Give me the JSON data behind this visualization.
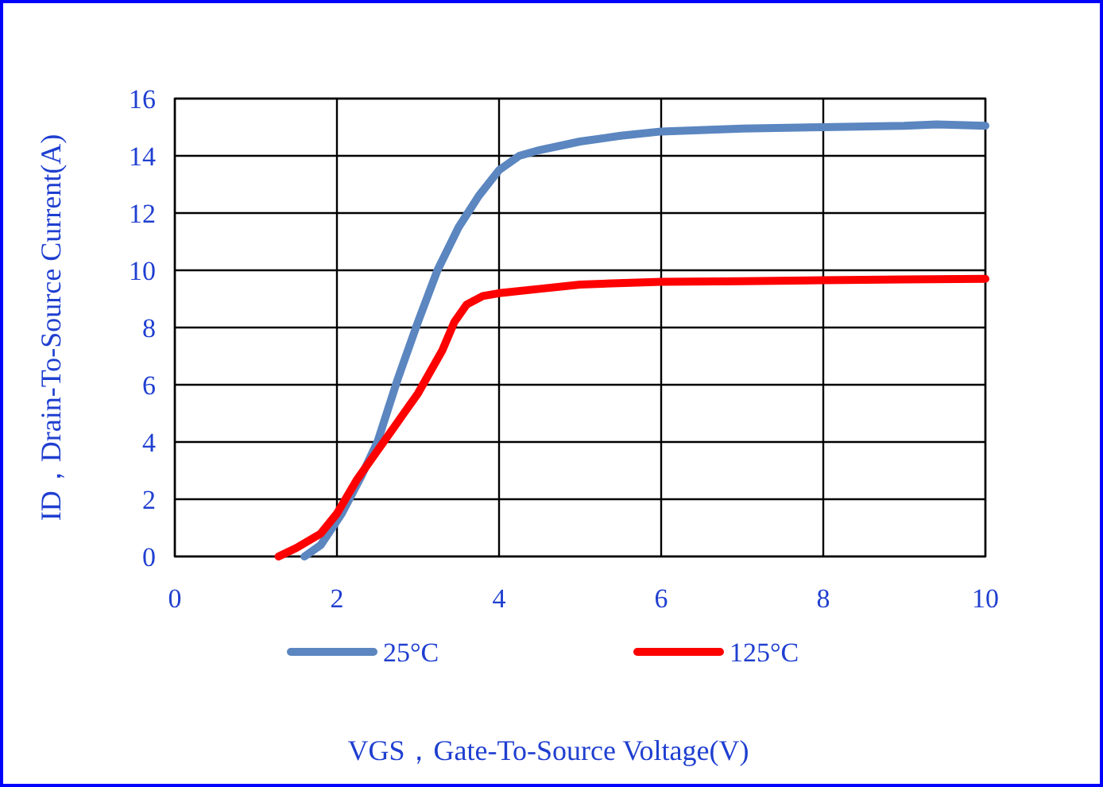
{
  "chart_data": {
    "type": "line",
    "xlabel": "VGS，Gate-To-Source Voltage(V)",
    "ylabel": "ID，Drain-To-Source Current(A)",
    "xlim": [
      0,
      10
    ],
    "xticks": [
      0,
      2,
      4,
      6,
      8,
      10
    ],
    "ylim": [
      0,
      16
    ],
    "yticks": [
      0,
      2,
      4,
      6,
      8,
      10,
      12,
      14,
      16
    ],
    "grid": true,
    "legend": "bottom",
    "line_style": "solid",
    "series": [
      {
        "name": "25°C",
        "color": "#5b86c0",
        "x": [
          1.6,
          1.8,
          2.06,
          2.3,
          2.5,
          2.75,
          3,
          3.24,
          3.5,
          3.75,
          4,
          4.25,
          4.5,
          5,
          5.5,
          6,
          7,
          8,
          9,
          9.4,
          10
        ],
        "values": [
          0,
          0.4,
          1.5,
          2.8,
          4,
          6.2,
          8.2,
          10,
          11.5,
          12.6,
          13.5,
          14,
          14.2,
          14.5,
          14.7,
          14.85,
          14.95,
          15,
          15.05,
          15.1,
          15.05
        ]
      },
      {
        "name": "125°C",
        "color": "#ff0000",
        "x": [
          1.28,
          1.5,
          1.8,
          2,
          2.25,
          2.5,
          2.75,
          3,
          3.3,
          3.45,
          3.6,
          3.8,
          4,
          4.5,
          5,
          6,
          7,
          8,
          9,
          10
        ],
        "values": [
          0,
          0.3,
          0.8,
          1.5,
          2.7,
          3.7,
          4.7,
          5.7,
          7.2,
          8.2,
          8.8,
          9.1,
          9.2,
          9.35,
          9.5,
          9.6,
          9.62,
          9.65,
          9.68,
          9.7
        ]
      }
    ]
  }
}
